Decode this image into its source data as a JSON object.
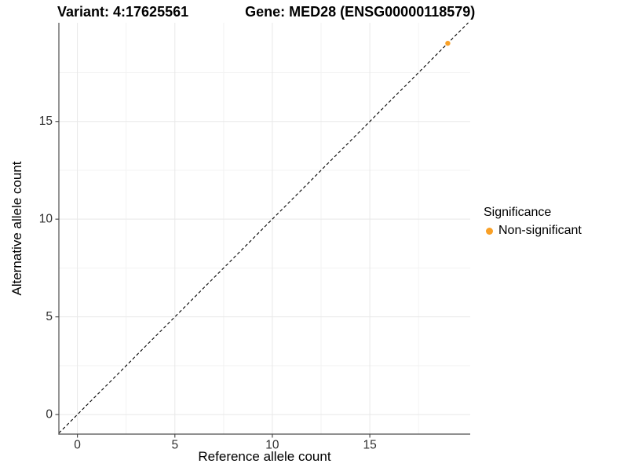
{
  "title": {
    "variant": "Variant: 4:17625561",
    "gene": "Gene: MED28 (ENSG00000118579)"
  },
  "axes": {
    "x_label": "Reference allele count",
    "y_label": "Alternative allele count"
  },
  "legend": {
    "title": "Significance",
    "items": [
      {
        "label": "Non-significant",
        "color": "#F9A026"
      }
    ]
  },
  "colors": {
    "background": "#ffffff",
    "axis_line": "#4d4d4d",
    "tick_label": "#303030",
    "grid_major": "#e8e8e8",
    "grid_minor": "#f3f3f3",
    "point": "#F9A026",
    "reference_line": "#000000"
  },
  "chart_data": {
    "type": "scatter",
    "title": "Variant: 4:17625561   Gene: MED28 (ENSG00000118579)",
    "xlabel": "Reference allele count",
    "ylabel": "Alternative allele count",
    "xlim": [
      -0.95,
      20.15
    ],
    "ylim": [
      -1.0,
      20.05
    ],
    "x_ticks": [
      0,
      5,
      10,
      15
    ],
    "y_ticks": [
      0,
      5,
      10,
      15
    ],
    "x_minor_breaks": [
      2.5,
      7.5,
      12.5,
      17.5
    ],
    "y_minor_breaks": [
      2.5,
      7.5,
      12.5,
      17.5
    ],
    "grid": true,
    "legend_position": "right",
    "series": [
      {
        "name": "Non-significant",
        "color": "#F9A026",
        "points": [
          {
            "x": 19,
            "y": 19
          }
        ]
      }
    ],
    "reference_line": {
      "description": "identity line y = x",
      "slope": 1,
      "intercept": 0,
      "style": "dashed",
      "color": "#000000"
    }
  }
}
